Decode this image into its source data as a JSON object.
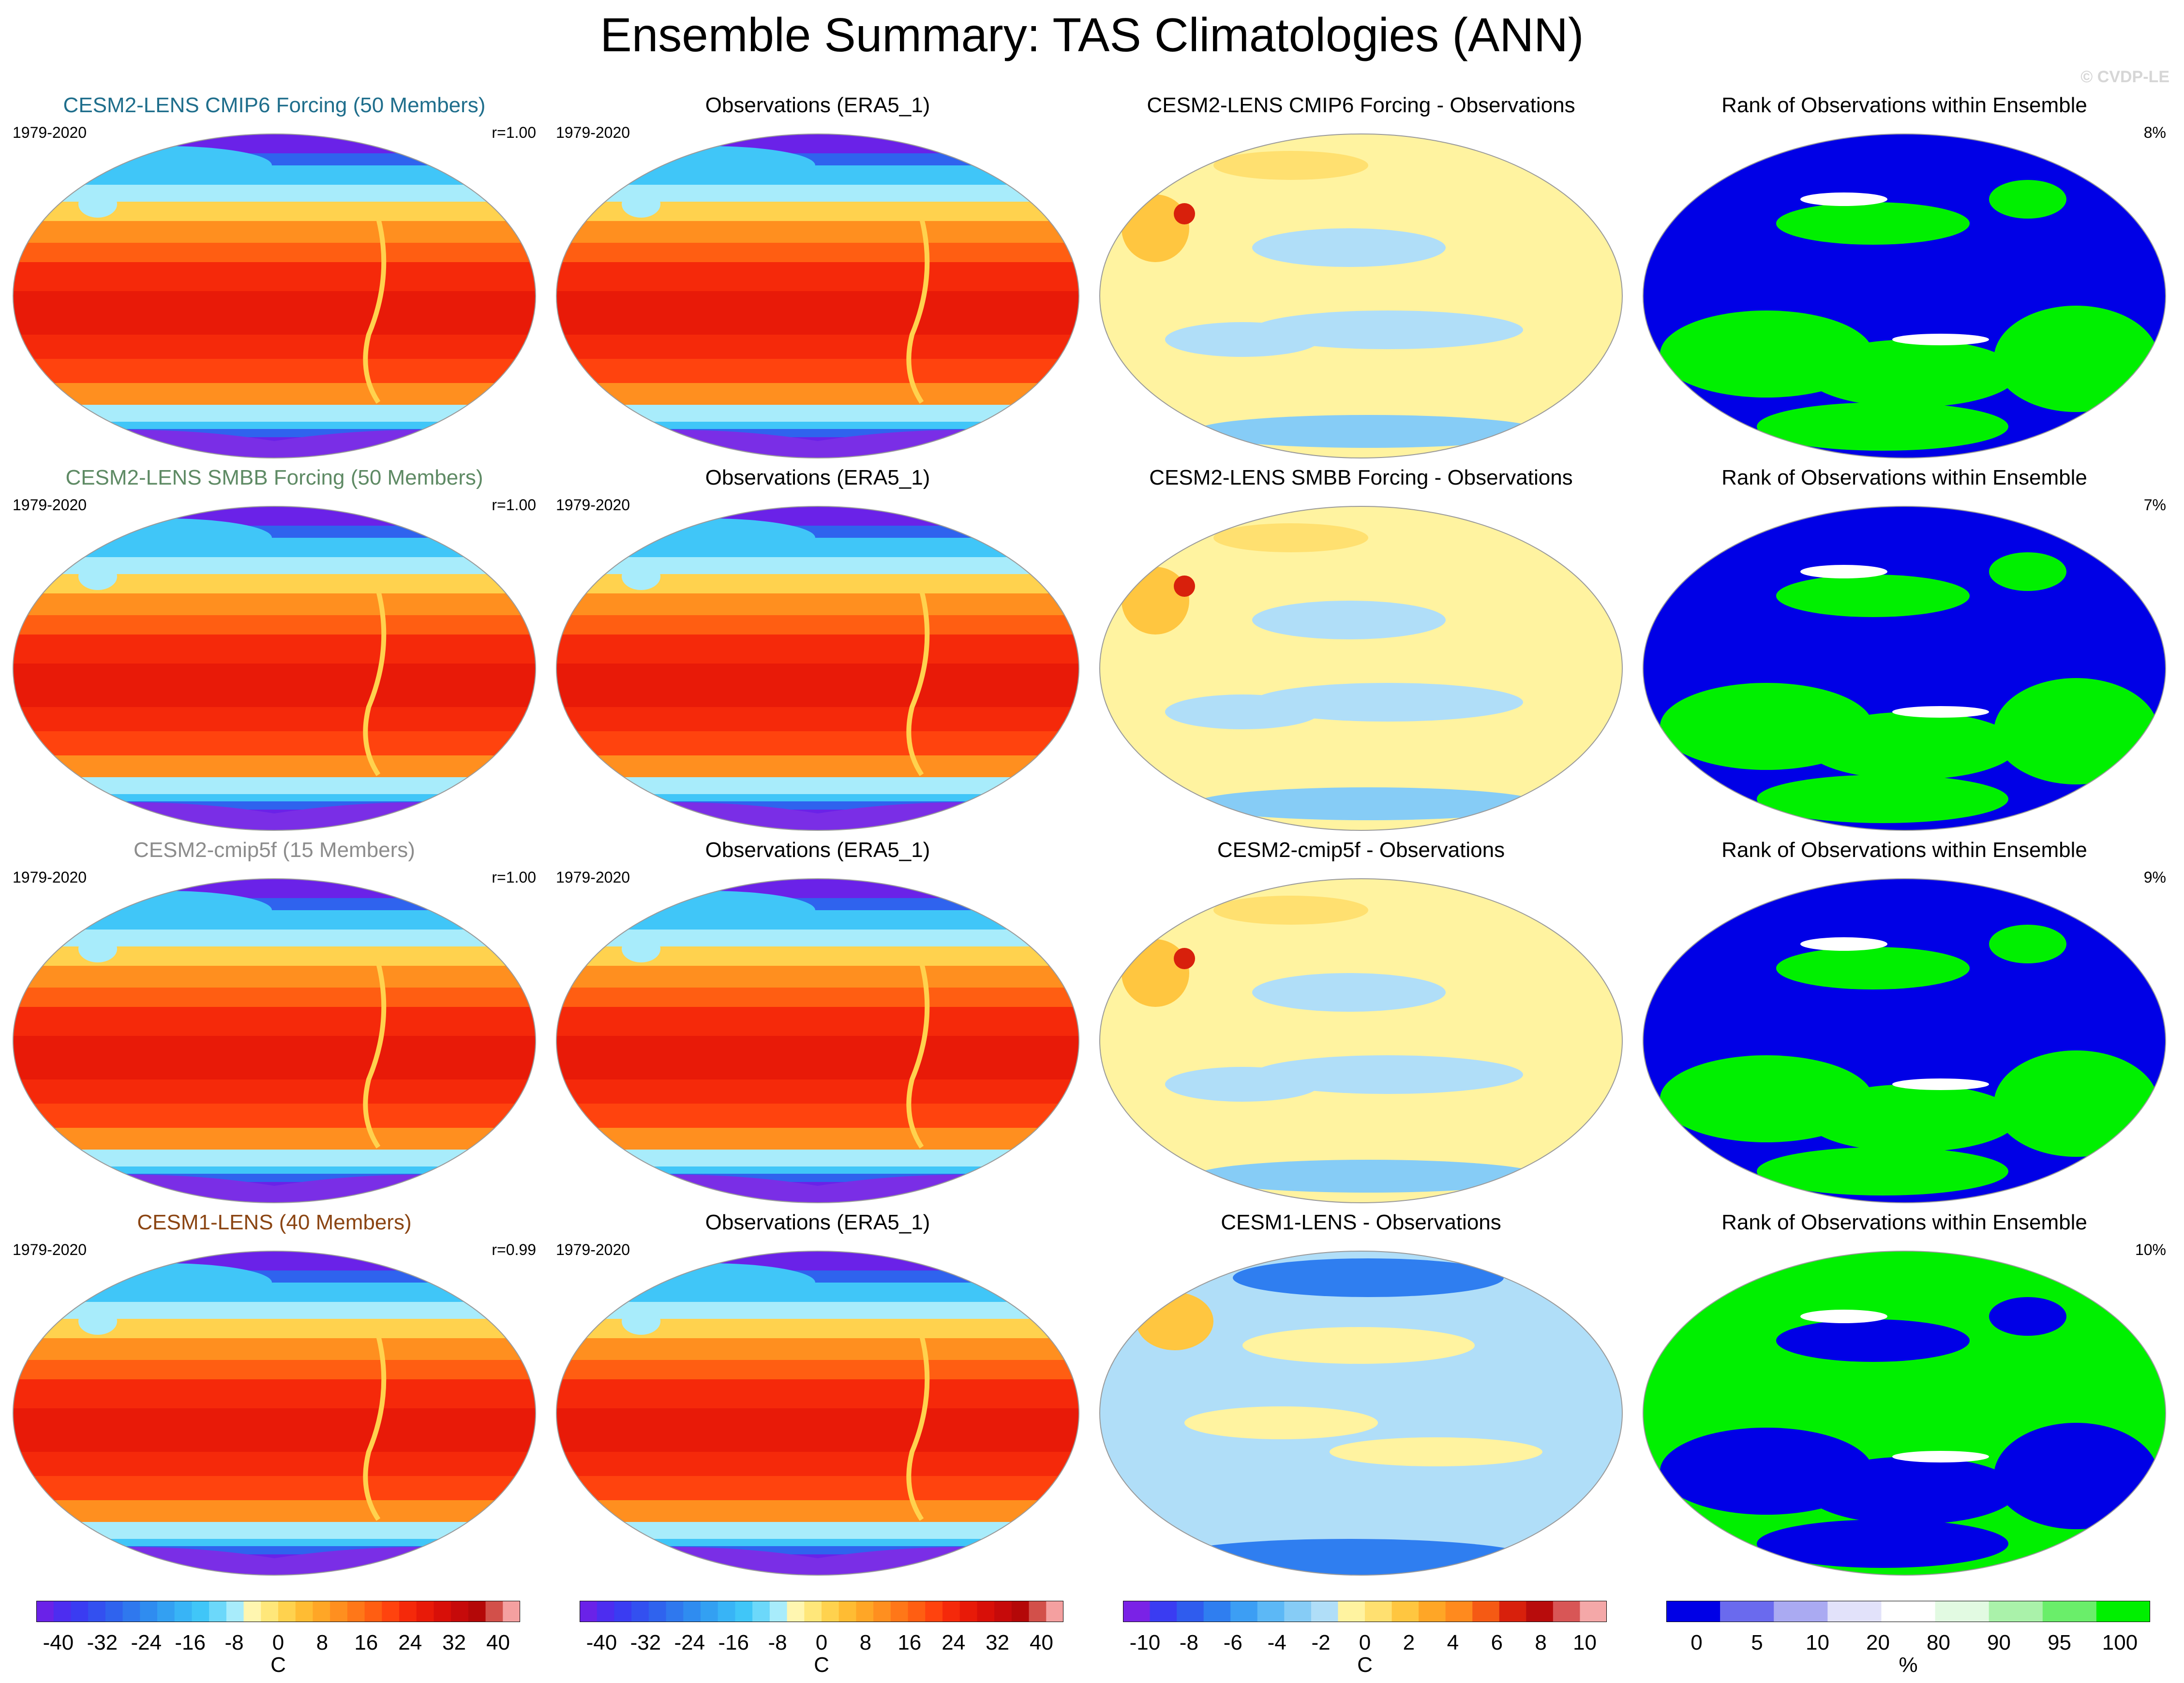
{
  "page": {
    "title": "Ensemble Summary: TAS Climatologies (ANN)",
    "credit": "© CVDP-LE"
  },
  "rows": [
    {
      "model": {
        "title": "CESM2-LENS CMIP6 Forcing (50 Members)",
        "color": "#1f6e8c",
        "period": "1979-2020",
        "r": "r=1.00"
      },
      "obs": {
        "title": "Observations (ERA5_1)",
        "period": "1979-2020"
      },
      "diff": {
        "title": "CESM2-LENS CMIP6 Forcing - Observations"
      },
      "rank": {
        "title": "Rank of Observations within Ensemble",
        "pct": "8%"
      }
    },
    {
      "model": {
        "title": "CESM2-LENS SMBB Forcing (50 Members)",
        "color": "#5e8a64",
        "period": "1979-2020",
        "r": "r=1.00"
      },
      "obs": {
        "title": "Observations (ERA5_1)",
        "period": "1979-2020"
      },
      "diff": {
        "title": "CESM2-LENS SMBB Forcing - Observations"
      },
      "rank": {
        "title": "Rank of Observations within Ensemble",
        "pct": "7%"
      }
    },
    {
      "model": {
        "title": "CESM2-cmip5f (15 Members)",
        "color": "#8c8c8c",
        "period": "1979-2020",
        "r": "r=1.00"
      },
      "obs": {
        "title": "Observations (ERA5_1)",
        "period": "1979-2020"
      },
      "diff": {
        "title": "CESM2-cmip5f - Observations"
      },
      "rank": {
        "title": "Rank of Observations within Ensemble",
        "pct": "9%"
      }
    },
    {
      "model": {
        "title": "CESM1-LENS (40 Members)",
        "color": "#8b4513",
        "period": "1979-2020",
        "r": "r=0.99"
      },
      "obs": {
        "title": "Observations (ERA5_1)",
        "period": "1979-2020"
      },
      "diff": {
        "title": "CESM1-LENS - Observations"
      },
      "rank": {
        "title": "Rank of Observations within Ensemble",
        "pct": "10%"
      }
    }
  ],
  "colorbars": [
    {
      "unit": "C",
      "labels": [
        "-40",
        "-32",
        "-24",
        "-16",
        "-8",
        "0",
        "8",
        "16",
        "24",
        "32",
        "40"
      ],
      "colors": [
        "#6a22e8",
        "#4d2df0",
        "#3a3cf2",
        "#3350f0",
        "#2f63ee",
        "#2f78ee",
        "#2f8cf0",
        "#33a0f2",
        "#38b4f6",
        "#40c6f8",
        "#6cd8fa",
        "#a8ecfb",
        "#fff6b0",
        "#ffe77a",
        "#ffd24e",
        "#ffbc33",
        "#ffa626",
        "#ff8f1f",
        "#ff7718",
        "#ff5e12",
        "#ff430e",
        "#f5290a",
        "#e81a08",
        "#d80f08",
        "#c60a0a",
        "#b40808",
        "#d2504a",
        "#f4a0a0"
      ]
    },
    {
      "unit": "C",
      "labels": [
        "-40",
        "-32",
        "-24",
        "-16",
        "-8",
        "0",
        "8",
        "16",
        "24",
        "32",
        "40"
      ],
      "colors": [
        "#6a22e8",
        "#4d2df0",
        "#3a3cf2",
        "#3350f0",
        "#2f63ee",
        "#2f78ee",
        "#2f8cf0",
        "#33a0f2",
        "#38b4f6",
        "#40c6f8",
        "#6cd8fa",
        "#a8ecfb",
        "#fff6b0",
        "#ffe77a",
        "#ffd24e",
        "#ffbc33",
        "#ffa626",
        "#ff8f1f",
        "#ff7718",
        "#ff5e12",
        "#ff430e",
        "#f5290a",
        "#e81a08",
        "#d80f08",
        "#c60a0a",
        "#b40808",
        "#d2504a",
        "#f4a0a0"
      ]
    },
    {
      "unit": "C",
      "labels": [
        "-10",
        "-8",
        "-6",
        "-4",
        "-2",
        "0",
        "2",
        "4",
        "6",
        "8",
        "10"
      ],
      "colors": [
        "#7a22e6",
        "#3a3cf2",
        "#2f5cee",
        "#2f7ef0",
        "#3c9ef4",
        "#5cb8f6",
        "#86ccf6",
        "#b0def8",
        "#fff3a0",
        "#ffe070",
        "#ffc640",
        "#ffa626",
        "#ff8a1e",
        "#f55a14",
        "#d8200c",
        "#b80c0c",
        "#d85656",
        "#f4a8a8"
      ]
    },
    {
      "unit": "%",
      "labels": [
        "0",
        "5",
        "10",
        "20",
        "80",
        "90",
        "95",
        "100"
      ],
      "colors": [
        "#0000e6",
        "#6a6aee",
        "#aaaaf2",
        "#e2e2fa",
        "#ffffff",
        "#e2fae2",
        "#aaf2aa",
        "#6aee6a",
        "#00f000"
      ]
    }
  ]
}
